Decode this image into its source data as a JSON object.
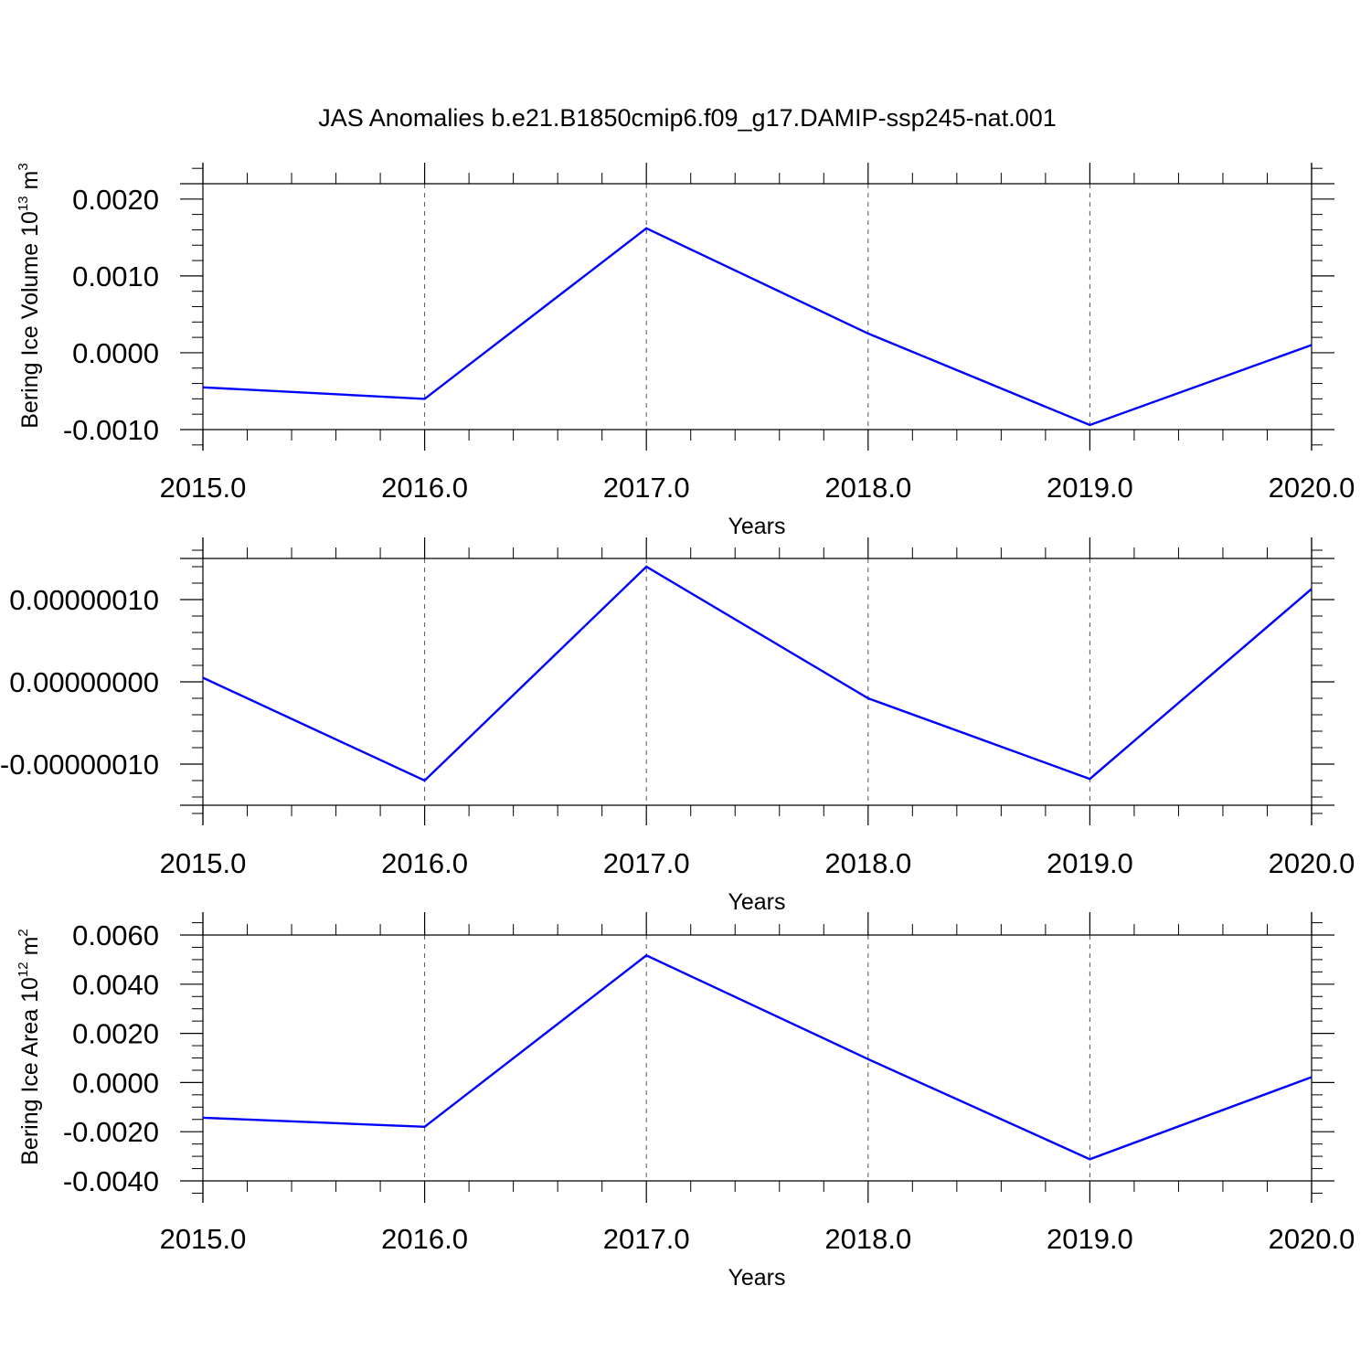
{
  "title": "JAS Anomalies b.e21.B1850cmip6.f09_g17.DAMIP-ssp245-nat.001",
  "colors": {
    "line": "#0000ff",
    "axis": "#000000",
    "grid": "#555555",
    "background": "#ffffff"
  },
  "chart_data": [
    {
      "type": "line",
      "ylabel": "Bering Ice Volume 10",
      "ylabel_exponent": "13",
      "ylabel_unit": " m",
      "ylabel_unit_exponent": "3",
      "xlabel": "Years",
      "x": [
        2015,
        2016,
        2017,
        2018,
        2019,
        2020
      ],
      "xlim": [
        2015,
        2020
      ],
      "x_ticks": [
        "2015.0",
        "2016.0",
        "2017.0",
        "2018.0",
        "2019.0",
        "2020.0"
      ],
      "ylim": [
        -0.001,
        0.0022
      ],
      "y_ticks": [
        {
          "value": 0.002,
          "label": "0.0020"
        },
        {
          "value": 0.001,
          "label": "0.0010"
        },
        {
          "value": 0.0,
          "label": "0.0000"
        },
        {
          "value": -0.001,
          "label": "-0.0010"
        }
      ],
      "grid": "vertical dashed at major x ticks",
      "series": [
        {
          "values": [
            -0.00045,
            -0.0006,
            0.00162,
            0.00025,
            -0.00094,
            0.0001
          ]
        }
      ]
    },
    {
      "type": "line",
      "ylabel": "",
      "xlabel": "Years",
      "x": [
        2015,
        2016,
        2017,
        2018,
        2019,
        2020
      ],
      "xlim": [
        2015,
        2020
      ],
      "x_ticks": [
        "2015.0",
        "2016.0",
        "2017.0",
        "2018.0",
        "2019.0",
        "2020.0"
      ],
      "ylim": [
        -1.5e-07,
        1.5e-07
      ],
      "y_ticks": [
        {
          "value": 1e-07,
          "label": "0.00000010"
        },
        {
          "value": 0.0,
          "label": "0.00000000"
        },
        {
          "value": -1e-07,
          "label": "-0.00000010"
        }
      ],
      "grid": "vertical dashed at major x ticks",
      "series": [
        {
          "values": [
            5e-09,
            -1.2e-07,
            1.4e-07,
            -2e-08,
            -1.18e-07,
            1.13e-07
          ]
        }
      ]
    },
    {
      "type": "line",
      "ylabel": "Bering Ice Area 10",
      "ylabel_exponent": "12",
      "ylabel_unit": " m",
      "ylabel_unit_exponent": "2",
      "xlabel": "Years",
      "x": [
        2015,
        2016,
        2017,
        2018,
        2019,
        2020
      ],
      "xlim": [
        2015,
        2020
      ],
      "x_ticks": [
        "2015.0",
        "2016.0",
        "2017.0",
        "2018.0",
        "2019.0",
        "2020.0"
      ],
      "ylim": [
        -0.004,
        0.006
      ],
      "y_ticks": [
        {
          "value": 0.006,
          "label": "0.0060"
        },
        {
          "value": 0.004,
          "label": "0.0040"
        },
        {
          "value": 0.002,
          "label": "0.0020"
        },
        {
          "value": 0.0,
          "label": "0.0000"
        },
        {
          "value": -0.002,
          "label": "-0.0020"
        },
        {
          "value": -0.004,
          "label": "-0.0040"
        }
      ],
      "grid": "vertical dashed at major x ticks",
      "series": [
        {
          "values": [
            -0.00143,
            -0.0018,
            0.00517,
            0.00095,
            -0.00312,
            0.00022
          ]
        }
      ]
    }
  ]
}
